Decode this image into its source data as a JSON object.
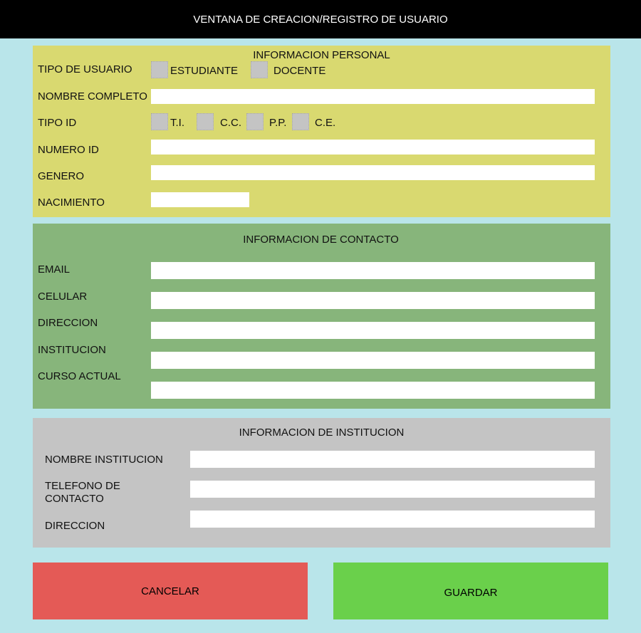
{
  "window": {
    "title": "VENTANA DE CREACION/REGISTRO DE USUARIO"
  },
  "personal": {
    "title": "INFORMACION PERSONAL",
    "tipo_usuario": "TIPO DE USUARIO",
    "opt_estudiante": "ESTUDIANTE",
    "opt_docente": "DOCENTE",
    "nombre": "NOMBRE COMPLETO",
    "tipo_id": "TIPO ID",
    "id_ti": "T.I.",
    "id_cc": "C.C.",
    "id_pp": "P.P.",
    "id_ce": "C.E.",
    "numero_id": "NUMERO ID",
    "genero": "GENERO",
    "nacimiento": "NACIMIENTO"
  },
  "contacto": {
    "title": "INFORMACION DE CONTACTO",
    "email": "EMAIL",
    "celular": "CELULAR",
    "direccion": "DIRECCION",
    "institucion": "INSTITUCION",
    "curso": "CURSO ACTUAL"
  },
  "institucion": {
    "title": "INFORMACION DE INSTITUCION",
    "nombre": "NOMBRE INSTITUCION",
    "telefono": "TELEFONO DE CONTACTO",
    "direccion": "DIRECCION"
  },
  "buttons": {
    "cancel": "CANCELAR",
    "save": "GUARDAR"
  },
  "colors": {
    "personal": "#d9d970",
    "contacto": "#87b57b",
    "institucion": "#c4c4c4",
    "cancel": "#e45a56",
    "save": "#6ad04b",
    "background": "#b9e5ea"
  }
}
